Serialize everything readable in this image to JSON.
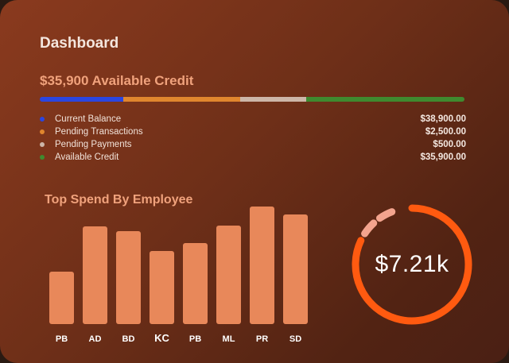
{
  "header": {
    "title": "Dashboard"
  },
  "credit": {
    "heading": "$35,900 Available Credit",
    "legend": [
      {
        "label": "Current Balance",
        "value": "$38,900.00",
        "color": "#2b46e0"
      },
      {
        "label": "Pending Transactions",
        "value": "$2,500.00",
        "color": "#e0862e"
      },
      {
        "label": "Pending Payments",
        "value": "$500.00",
        "color": "#cdb6a8"
      },
      {
        "label": "Available Credit",
        "value": "$35,900.00",
        "color": "#3f8a2f"
      }
    ],
    "bar_colors": [
      "#2b46e0",
      "#e0862e",
      "#cdb6a8",
      "#3f8a2f"
    ],
    "bar_shares": [
      0.196,
      0.275,
      0.157,
      0.372
    ]
  },
  "spend": {
    "heading": "Top Spend By Employee",
    "chart_data": {
      "type": "bar",
      "categories": [
        "PB",
        "AD",
        "BD",
        "KC",
        "PB",
        "ML",
        "PR",
        "SD"
      ],
      "values": [
        66,
        123,
        117,
        92,
        102,
        124,
        148,
        138
      ],
      "bar_color": "#e8885a",
      "label_color": "#ffffff"
    }
  },
  "gauge": {
    "value_label": "$7.21k",
    "fraction": 0.82,
    "main_color": "#ff5a10",
    "accent_color": "#f3a48e"
  }
}
